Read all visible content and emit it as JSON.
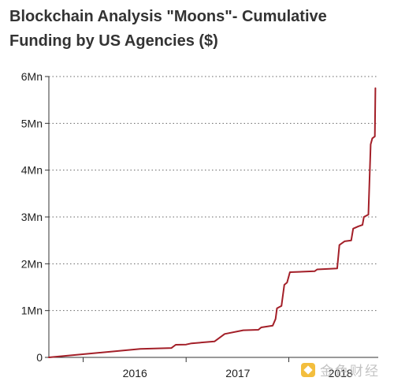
{
  "chart_data": {
    "type": "line",
    "title": "Blockchain Analysis \"Moons\"- Cumulative Funding by US Agencies ($)",
    "xlabel": "",
    "ylabel": "",
    "x_range": [
      "2015-03-01",
      "2018-05-15"
    ],
    "ylim": [
      0,
      6000000
    ],
    "y_ticks": [
      {
        "value": 0,
        "label": "0"
      },
      {
        "value": 1000000,
        "label": "1Mn"
      },
      {
        "value": 2000000,
        "label": "2Mn"
      },
      {
        "value": 3000000,
        "label": "3Mn"
      },
      {
        "value": 4000000,
        "label": "4Mn"
      },
      {
        "value": 5000000,
        "label": "5Mn"
      },
      {
        "value": 6000000,
        "label": "6Mn"
      }
    ],
    "x_ticks": [
      {
        "label": "2016",
        "date": "2016-01-01",
        "boundary": "2015-07-01"
      },
      {
        "label": "2017",
        "date": "2017-01-01",
        "boundary": "2016-07-01"
      },
      {
        "label": "2018",
        "date": "2018-01-01",
        "boundary": "2017-07-01"
      }
    ],
    "grid": {
      "horizontal": true,
      "vertical": false,
      "style": "dotted"
    },
    "legend": "none",
    "series": [
      {
        "color": "#a31f28",
        "points": [
          [
            "2015-03-01",
            0
          ],
          [
            "2016-01-20",
            180000
          ],
          [
            "2016-05-10",
            200000
          ],
          [
            "2016-05-25",
            270000
          ],
          [
            "2016-07-01",
            275000
          ],
          [
            "2016-07-20",
            300000
          ],
          [
            "2016-10-10",
            340000
          ],
          [
            "2016-11-15",
            500000
          ],
          [
            "2017-01-20",
            580000
          ],
          [
            "2017-03-15",
            590000
          ],
          [
            "2017-03-25",
            640000
          ],
          [
            "2017-05-05",
            680000
          ],
          [
            "2017-05-15",
            820000
          ],
          [
            "2017-05-20",
            1050000
          ],
          [
            "2017-06-05",
            1100000
          ],
          [
            "2017-06-15",
            1550000
          ],
          [
            "2017-06-25",
            1600000
          ],
          [
            "2017-07-05",
            1820000
          ],
          [
            "2017-10-01",
            1840000
          ],
          [
            "2017-10-10",
            1880000
          ],
          [
            "2017-12-20",
            1900000
          ],
          [
            "2017-12-28",
            2400000
          ],
          [
            "2018-01-15",
            2480000
          ],
          [
            "2018-02-08",
            2500000
          ],
          [
            "2018-02-15",
            2750000
          ],
          [
            "2018-03-05",
            2800000
          ],
          [
            "2018-03-20",
            2830000
          ],
          [
            "2018-03-25",
            3000000
          ],
          [
            "2018-04-10",
            3050000
          ],
          [
            "2018-04-18",
            4550000
          ],
          [
            "2018-04-24",
            4680000
          ],
          [
            "2018-05-03",
            4720000
          ],
          [
            "2018-05-05",
            5750000
          ]
        ]
      }
    ],
    "colors": {
      "line": "#a31f28",
      "axis": "#333333",
      "grid": "#666666",
      "text": "#222222"
    }
  },
  "watermark": {
    "text": "金色财经"
  }
}
